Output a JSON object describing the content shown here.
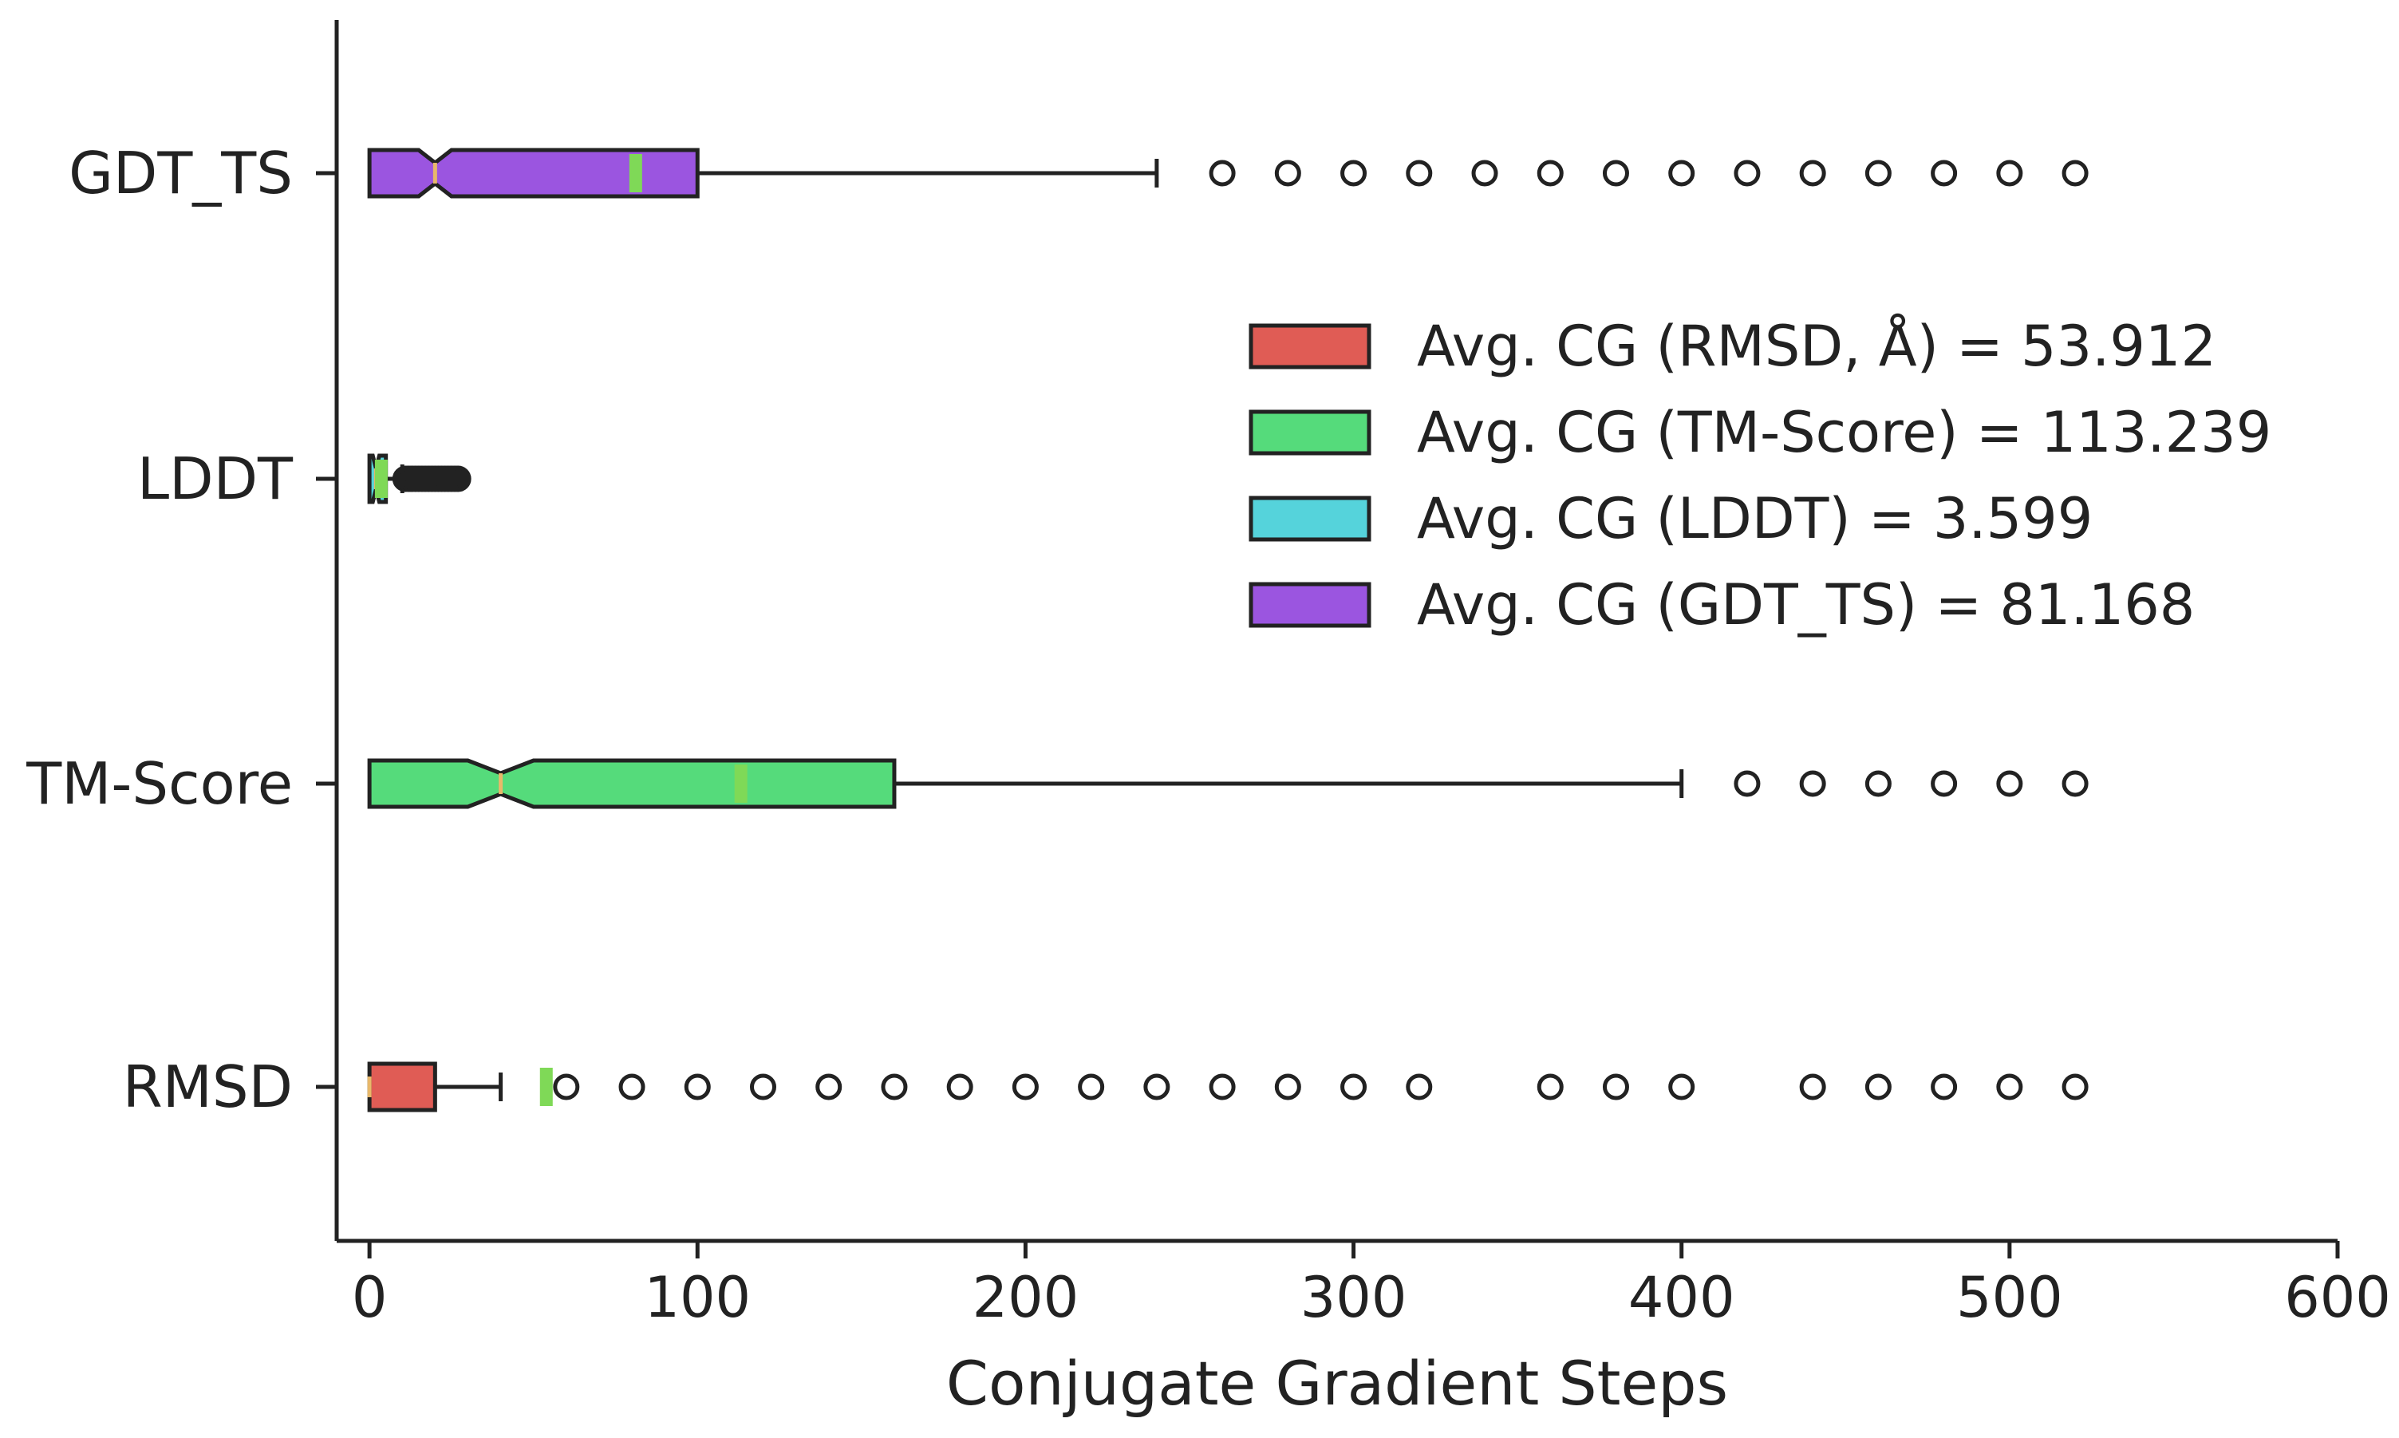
{
  "chart_data": {
    "type": "boxplot",
    "orientation": "horizontal",
    "notched": true,
    "xlabel": "Conjugate Gradient Steps",
    "ylabel": "",
    "xlim": [
      -10,
      600
    ],
    "xticks": [
      0,
      100,
      200,
      300,
      400,
      500,
      600
    ],
    "categories": [
      "RMSD",
      "TM-Score",
      "LDDT",
      "GDT_TS"
    ],
    "mean_marker_color": "#7fd957",
    "median_marker_color": "#e8b86a",
    "series": [
      {
        "name": "RMSD",
        "color": "#e05c55",
        "whislo": 0,
        "q1": 0,
        "med": 0,
        "q3": 20,
        "whishi": 40,
        "notch_lo": 0,
        "notch_hi": 0,
        "mean": 53.912,
        "fliers": [
          60,
          80,
          100,
          120,
          140,
          160,
          180,
          200,
          220,
          240,
          260,
          280,
          300,
          320,
          360,
          380,
          400,
          440,
          460,
          480,
          500,
          520
        ]
      },
      {
        "name": "TM-Score",
        "color": "#55db7b",
        "whislo": 0,
        "q1": 0,
        "med": 40,
        "q3": 160,
        "whishi": 400,
        "notch_lo": 30,
        "notch_hi": 50,
        "mean": 113.239,
        "fliers": [
          420,
          440,
          460,
          480,
          500,
          520
        ]
      },
      {
        "name": "LDDT",
        "color": "#55d3db",
        "whislo": 0,
        "q1": 0,
        "med": 2,
        "q3": 5,
        "whishi": 10,
        "notch_lo": 1,
        "notch_hi": 3,
        "mean": 3.599,
        "fliers": [
          11,
          12,
          13,
          14,
          15,
          16,
          17,
          18,
          19,
          20,
          21,
          22,
          23,
          24,
          25,
          26,
          27
        ]
      },
      {
        "name": "GDT_TS",
        "color": "#9b55e0",
        "whislo": 0,
        "q1": 0,
        "med": 20,
        "q3": 100,
        "whishi": 240,
        "notch_lo": 15,
        "notch_hi": 25,
        "mean": 81.168,
        "fliers": [
          260,
          280,
          300,
          320,
          340,
          360,
          380,
          400,
          420,
          440,
          460,
          480,
          500,
          520
        ]
      }
    ],
    "legend": {
      "position": "center-right",
      "entries": [
        {
          "label": "Avg. CG (RMSD, Å) = 53.912",
          "color": "#e05c55"
        },
        {
          "label": "Avg. CG (TM-Score) = 113.239",
          "color": "#55db7b"
        },
        {
          "label": "Avg. CG (LDDT) = 3.599",
          "color": "#55d3db"
        },
        {
          "label": "Avg. CG (GDT_TS) = 81.168",
          "color": "#9b55e0"
        }
      ]
    }
  }
}
